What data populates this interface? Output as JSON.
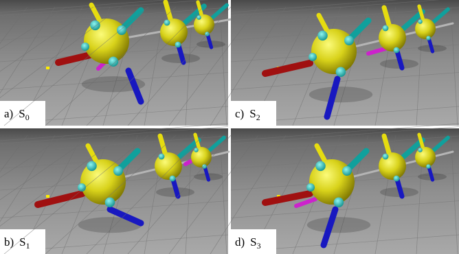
{
  "panels": [
    {
      "label": "a)",
      "symbol": "S",
      "subscript": "0"
    },
    {
      "label": "c)",
      "symbol": "S",
      "subscript": "2"
    },
    {
      "label": "b)",
      "symbol": "S",
      "subscript": "1"
    },
    {
      "label": "d)",
      "symbol": "S",
      "subscript": "3"
    }
  ]
}
